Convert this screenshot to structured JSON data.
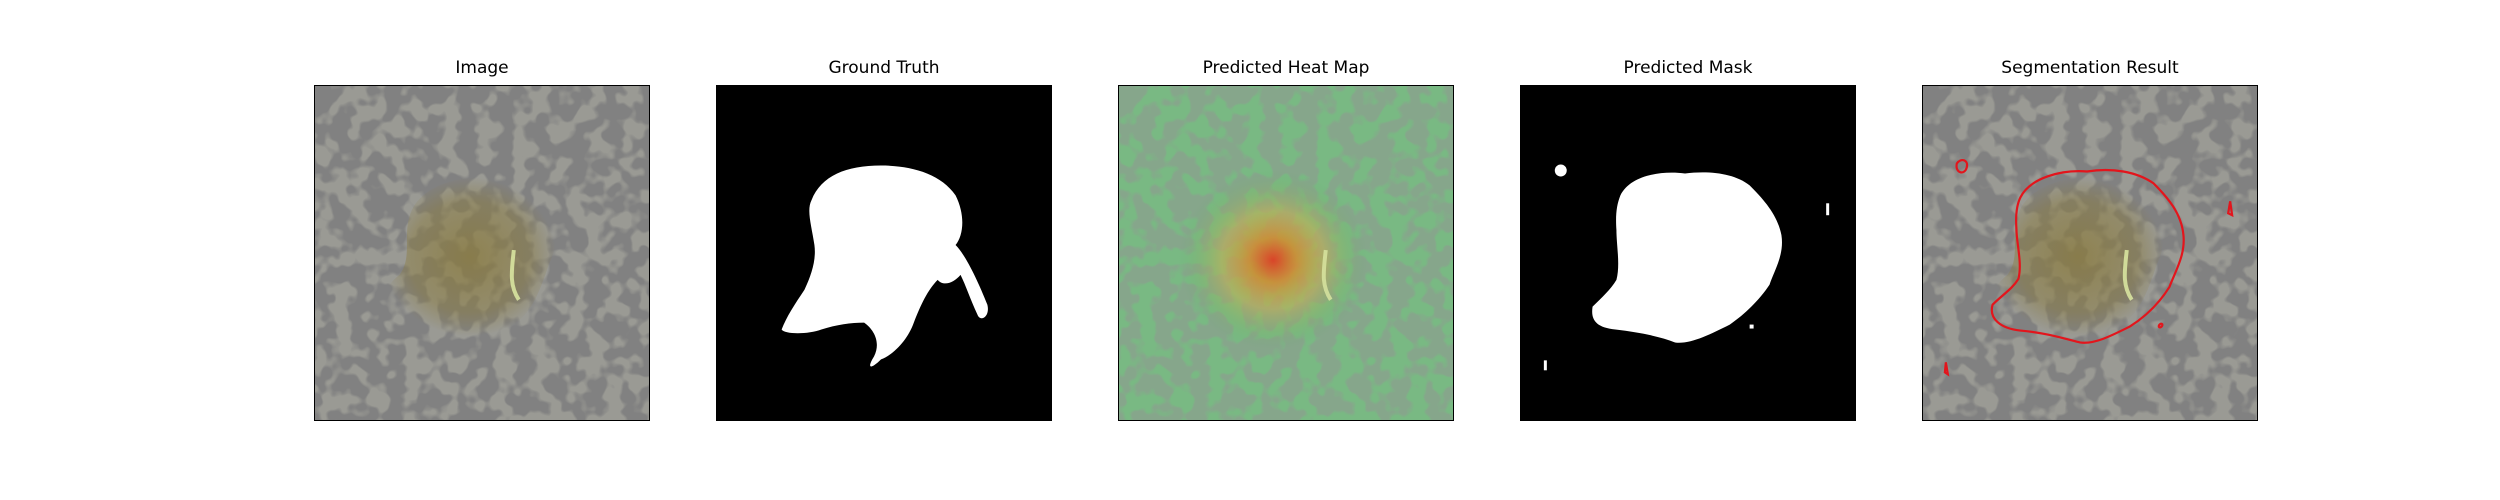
{
  "figure": {
    "panels": [
      {
        "title": "Image",
        "kind": "image"
      },
      {
        "title": "Ground Truth",
        "kind": "ground-truth"
      },
      {
        "title": "Predicted Heat Map",
        "kind": "heat-map"
      },
      {
        "title": "Predicted Mask",
        "kind": "mask"
      },
      {
        "title": "Segmentation Result",
        "kind": "segmentation"
      }
    ],
    "colors": {
      "background_texture": "#9a9a94",
      "spot": "#3a3a3a",
      "lesion_tint": "#8a7a3a",
      "heat_low": "#5fae6a",
      "heat_high": "#e23a1e",
      "mask_fg": "#ffffff",
      "mask_bg": "#000000",
      "contour": "#e3151c"
    }
  }
}
